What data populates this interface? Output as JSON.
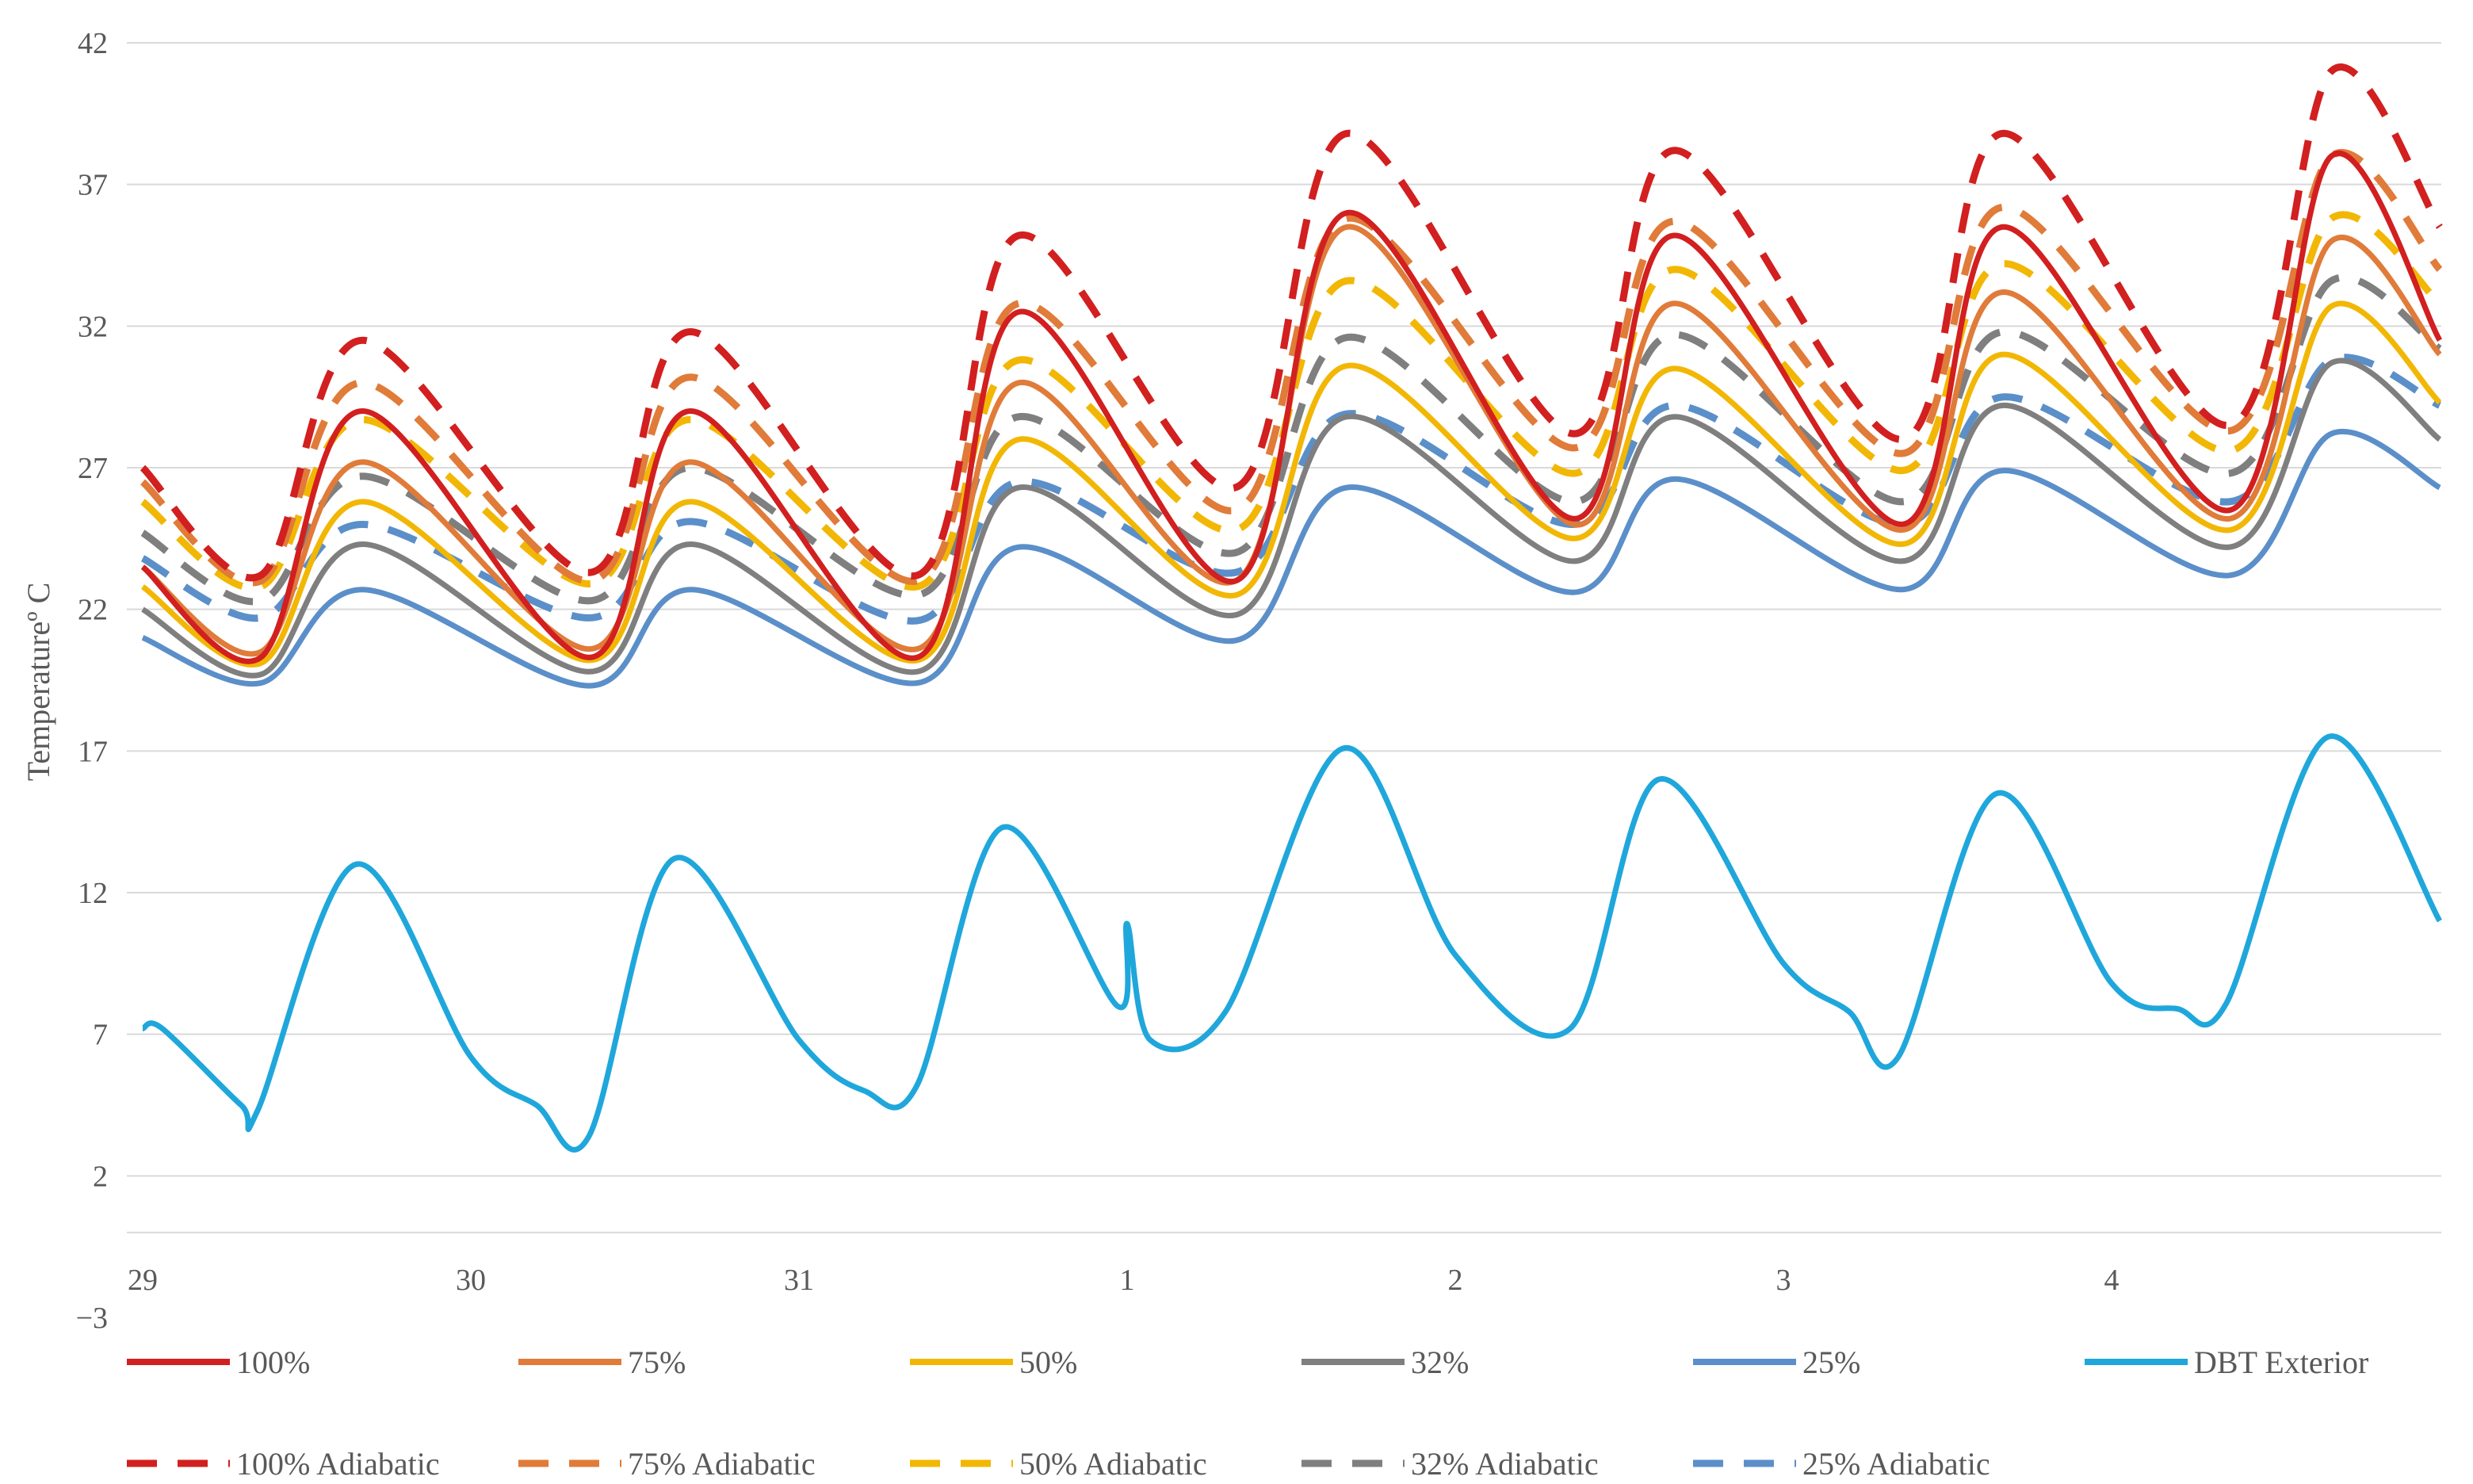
{
  "chart_data": {
    "type": "line",
    "title": "",
    "xlabel": "",
    "ylabel": "Temperatureº C",
    "ylim": [
      -3,
      42
    ],
    "yticks": [
      -3,
      2,
      7,
      12,
      17,
      22,
      27,
      32,
      37,
      42
    ],
    "xlim": [
      0,
      7
    ],
    "x_ticks": [
      {
        "x": 0,
        "label": "29"
      },
      {
        "x": 1,
        "label": "30"
      },
      {
        "x": 2,
        "label": "31"
      },
      {
        "x": 3,
        "label": "1"
      },
      {
        "x": 4,
        "label": "2"
      },
      {
        "x": 5,
        "label": "3"
      },
      {
        "x": 6,
        "label": "4"
      }
    ],
    "grid": true,
    "legend_position": "bottom",
    "series": [
      {
        "name": "100%",
        "color": "#d21f1f",
        "dash": false,
        "x": [
          0,
          0.36,
          0.67,
          1.36,
          1.67,
          2.36,
          2.67,
          3.33,
          3.67,
          4.36,
          4.67,
          5.36,
          5.67,
          6.36,
          6.67,
          7.0
        ],
        "y": [
          23.5,
          20.3,
          29.0,
          20.3,
          29.0,
          20.3,
          32.5,
          23.0,
          36.0,
          25.2,
          35.2,
          25.0,
          35.5,
          25.5,
          38.0,
          31.5
        ]
      },
      {
        "name": "75%",
        "color": "#e07b39",
        "dash": false,
        "x": [
          0,
          0.36,
          0.67,
          1.36,
          1.67,
          2.36,
          2.67,
          3.33,
          3.67,
          4.36,
          4.67,
          5.36,
          5.67,
          6.36,
          6.67,
          7.0
        ],
        "y": [
          23.5,
          20.5,
          27.2,
          20.6,
          27.2,
          20.6,
          30.0,
          23.0,
          35.5,
          25.0,
          32.8,
          24.8,
          33.2,
          25.2,
          35.0,
          31.0
        ]
      },
      {
        "name": "50%",
        "color": "#f2b705",
        "dash": false,
        "x": [
          0,
          0.36,
          0.67,
          1.36,
          1.67,
          2.36,
          2.67,
          3.33,
          3.67,
          4.36,
          4.67,
          5.36,
          5.67,
          6.36,
          6.67,
          7.0
        ],
        "y": [
          22.8,
          20.1,
          25.8,
          20.2,
          25.8,
          20.2,
          28.0,
          22.5,
          30.6,
          24.5,
          30.5,
          24.3,
          31.0,
          24.8,
          32.7,
          29.3
        ]
      },
      {
        "name": "32%",
        "color": "#7f7f7f",
        "dash": false,
        "x": [
          0,
          0.36,
          0.67,
          1.36,
          1.67,
          2.36,
          2.67,
          3.33,
          3.67,
          4.36,
          4.67,
          5.36,
          5.67,
          6.36,
          6.67,
          7.0
        ],
        "y": [
          22.0,
          19.7,
          24.3,
          19.8,
          24.3,
          19.8,
          26.3,
          21.8,
          28.8,
          23.7,
          28.8,
          23.7,
          29.2,
          24.2,
          30.7,
          28.0
        ]
      },
      {
        "name": "25%",
        "color": "#5b8fc9",
        "dash": false,
        "x": [
          0,
          0.36,
          0.67,
          1.36,
          1.67,
          2.36,
          2.67,
          3.33,
          3.67,
          4.36,
          4.67,
          5.36,
          5.67,
          6.36,
          6.67,
          7.0
        ],
        "y": [
          21.0,
          19.4,
          22.7,
          19.3,
          22.7,
          19.4,
          24.2,
          20.9,
          26.3,
          22.6,
          26.6,
          22.7,
          26.9,
          23.2,
          28.2,
          26.3
        ]
      },
      {
        "name": "DBT Exterior",
        "color": "#1fa7dc",
        "dash": false,
        "x": [
          0,
          0.06,
          0.3,
          0.35,
          0.65,
          1.0,
          1.2,
          1.36,
          1.62,
          2.0,
          2.2,
          2.36,
          2.62,
          2.97,
          3.0,
          3.07,
          3.3,
          3.66,
          4.0,
          4.35,
          4.62,
          5.0,
          5.2,
          5.35,
          5.65,
          6.0,
          6.2,
          6.35,
          6.66,
          7.0
        ],
        "y": [
          7.2,
          7.2,
          4.5,
          4.3,
          13.0,
          6.2,
          4.5,
          3.4,
          13.2,
          6.8,
          5.0,
          5.2,
          14.3,
          8.0,
          10.9,
          6.8,
          7.8,
          17.1,
          9.8,
          7.2,
          16.0,
          9.5,
          7.8,
          6.2,
          15.5,
          8.8,
          7.9,
          8.1,
          17.5,
          11.0
        ]
      },
      {
        "name": "100% Adiabatic",
        "color": "#d21f1f",
        "dash": true,
        "x": [
          0,
          0.36,
          0.67,
          1.36,
          1.67,
          2.36,
          2.67,
          3.33,
          3.67,
          4.36,
          4.67,
          5.36,
          5.67,
          6.36,
          6.67,
          7.0
        ],
        "y": [
          27.0,
          23.2,
          31.5,
          23.3,
          31.8,
          23.2,
          35.2,
          26.3,
          38.8,
          28.2,
          38.2,
          28.0,
          38.8,
          28.5,
          41.0,
          35.5
        ]
      },
      {
        "name": "75% Adiabatic",
        "color": "#e07b39",
        "dash": true,
        "x": [
          0,
          0.36,
          0.67,
          1.36,
          1.67,
          2.36,
          2.67,
          3.33,
          3.67,
          4.36,
          4.67,
          5.36,
          5.67,
          6.36,
          6.67,
          7.0
        ],
        "y": [
          26.5,
          23.0,
          30.0,
          23.0,
          30.2,
          23.0,
          32.8,
          25.5,
          35.8,
          27.7,
          35.7,
          27.5,
          36.2,
          28.3,
          38.0,
          34.0
        ]
      },
      {
        "name": "50% Adiabatic",
        "color": "#f2b705",
        "dash": true,
        "x": [
          0,
          0.36,
          0.67,
          1.36,
          1.67,
          2.36,
          2.67,
          3.33,
          3.67,
          4.36,
          4.67,
          5.36,
          5.67,
          6.36,
          6.67,
          7.0
        ],
        "y": [
          25.8,
          22.8,
          28.7,
          22.9,
          28.7,
          22.8,
          30.8,
          24.8,
          33.6,
          26.8,
          34.0,
          26.9,
          34.2,
          27.6,
          35.8,
          32.8
        ]
      },
      {
        "name": "32% Adiabatic",
        "color": "#7f7f7f",
        "dash": true,
        "x": [
          0,
          0.36,
          0.67,
          1.36,
          1.67,
          2.36,
          2.67,
          3.33,
          3.67,
          4.36,
          4.67,
          5.36,
          5.67,
          6.36,
          6.67,
          7.0
        ],
        "y": [
          24.7,
          22.3,
          26.7,
          22.3,
          27.0,
          22.5,
          28.8,
          24.0,
          31.6,
          25.8,
          31.7,
          25.8,
          31.8,
          26.8,
          33.6,
          31.2
        ]
      },
      {
        "name": "25% Adiabatic",
        "color": "#5b8fc9",
        "dash": true,
        "x": [
          0,
          0.36,
          0.67,
          1.36,
          1.67,
          2.36,
          2.67,
          3.33,
          3.67,
          4.36,
          4.67,
          5.36,
          5.67,
          6.36,
          6.67,
          7.0
        ],
        "y": [
          23.8,
          21.7,
          25.0,
          21.7,
          25.1,
          21.6,
          26.5,
          23.3,
          28.9,
          25.0,
          29.2,
          25.0,
          29.5,
          25.8,
          30.8,
          29.2
        ]
      }
    ]
  }
}
